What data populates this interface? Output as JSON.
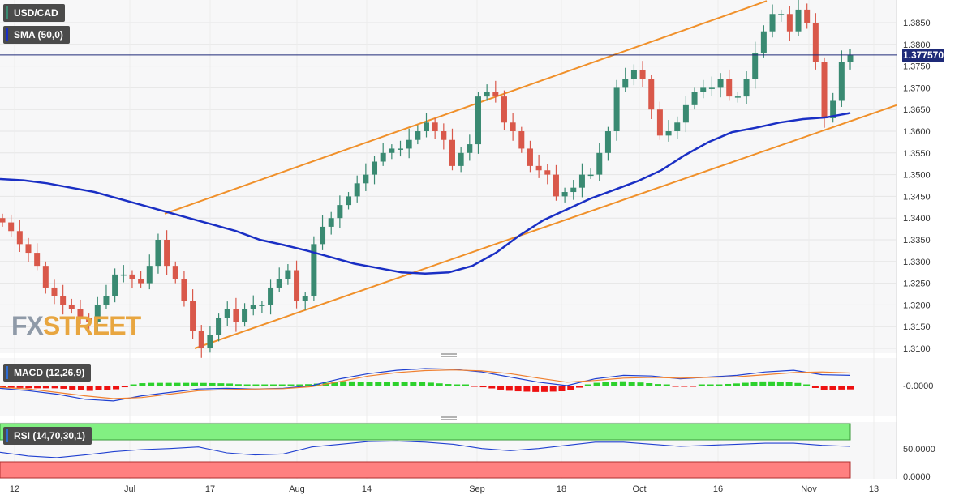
{
  "instrument": {
    "symbol": "USD/CAD",
    "last_price": "1.377570"
  },
  "indicators": {
    "sma": {
      "label": "SMA (50,0)",
      "color": "#1a2fc4"
    },
    "macd": {
      "label": "MACD (12,26,9)",
      "zero_label": "-0.0000",
      "pos_color": "#2dd12d",
      "neg_color": "#ee1111"
    },
    "rsi": {
      "label": "RSI (14,70,30,1)",
      "ticks": [
        "50.0000",
        "0.0000"
      ],
      "overbought_color": "#82f082",
      "oversold_color": "#ff8080"
    }
  },
  "watermark": {
    "part1": "FX",
    "part2": "STREET"
  },
  "colors": {
    "up": "#3a8a72",
    "down": "#d9584a",
    "channel": "#f0902a",
    "price_line": "#1e2a78"
  },
  "chart_data": {
    "type": "candlestick",
    "y_ticks": [
      "1.3850",
      "1.3800",
      "1.3750",
      "1.3700",
      "1.3650",
      "1.3600",
      "1.3550",
      "1.3500",
      "1.3450",
      "1.3400",
      "1.3350",
      "1.3300",
      "1.3250",
      "1.3200",
      "1.3150",
      "1.3100"
    ],
    "x_ticks": [
      "12",
      "Jul",
      "17",
      "Aug",
      "14",
      "Sep",
      "18",
      "Oct",
      "16",
      "Nov",
      "13"
    ],
    "ylim": [
      1.309,
      1.39
    ],
    "close_series": [
      1.339,
      1.337,
      1.334,
      1.332,
      1.329,
      1.324,
      1.322,
      1.32,
      1.319,
      1.317,
      1.316,
      1.32,
      1.322,
      1.327,
      1.327,
      1.326,
      1.325,
      1.329,
      1.335,
      1.329,
      1.326,
      1.321,
      1.314,
      1.31,
      1.313,
      1.317,
      1.319,
      1.316,
      1.319,
      1.32,
      1.32,
      1.324,
      1.326,
      1.328,
      1.321,
      1.322,
      1.334,
      1.338,
      1.34,
      1.343,
      1.345,
      1.348,
      1.35,
      1.353,
      1.355,
      1.356,
      1.356,
      1.358,
      1.36,
      1.362,
      1.36,
      1.358,
      1.352,
      1.355,
      1.357,
      1.368,
      1.369,
      1.368,
      1.362,
      1.36,
      1.356,
      1.352,
      1.351,
      1.35,
      1.345,
      1.346,
      1.347,
      1.35,
      1.35,
      1.355,
      1.36,
      1.37,
      1.372,
      1.374,
      1.372,
      1.365,
      1.359,
      1.36,
      1.362,
      1.366,
      1.369,
      1.37,
      1.37,
      1.372,
      1.368,
      1.368,
      1.372,
      1.378,
      1.383,
      1.387,
      1.387,
      1.383,
      1.388,
      1.385,
      1.376,
      1.363,
      1.367,
      1.376,
      1.3775
    ],
    "sma_50": [
      1.349,
      1.3487,
      1.348,
      1.347,
      1.346,
      1.3445,
      1.343,
      1.3415,
      1.34,
      1.3385,
      1.337,
      1.335,
      1.3338,
      1.3325,
      1.331,
      1.3295,
      1.3285,
      1.3275,
      1.3272,
      1.3275,
      1.329,
      1.332,
      1.336,
      1.3395,
      1.342,
      1.3445,
      1.3465,
      1.3485,
      1.351,
      1.3545,
      1.3575,
      1.3598,
      1.3608,
      1.362,
      1.3628,
      1.3632,
      1.3642
    ],
    "macd_line": [
      -0.0008,
      -0.0015,
      -0.0025,
      -0.004,
      -0.0045,
      -0.003,
      -0.002,
      -0.001,
      -0.0008,
      -0.001,
      -0.0008,
      0.0,
      0.002,
      0.0035,
      0.0045,
      0.005,
      0.0048,
      0.004,
      0.0025,
      0.001,
      0.0,
      0.002,
      0.003,
      0.0028,
      0.002,
      0.0025,
      0.003,
      0.004,
      0.0045,
      0.0032,
      0.003
    ],
    "macd_signal": [
      -0.0005,
      -0.001,
      -0.002,
      -0.003,
      -0.0038,
      -0.0035,
      -0.0025,
      -0.0015,
      -0.0012,
      -0.001,
      -0.0009,
      -0.0003,
      0.0012,
      0.0028,
      0.0038,
      0.0044,
      0.0046,
      0.0043,
      0.0035,
      0.0022,
      0.001,
      0.0015,
      0.0022,
      0.0024,
      0.0022,
      0.0024,
      0.0026,
      0.0032,
      0.0038,
      0.004,
      0.0037
    ],
    "rsi": [
      45,
      38,
      35,
      40,
      46,
      50,
      52,
      55,
      44,
      40,
      42,
      55,
      60,
      65,
      66,
      64,
      60,
      52,
      48,
      52,
      58,
      64,
      64,
      60,
      56,
      58,
      60,
      62,
      62,
      58,
      56
    ]
  }
}
